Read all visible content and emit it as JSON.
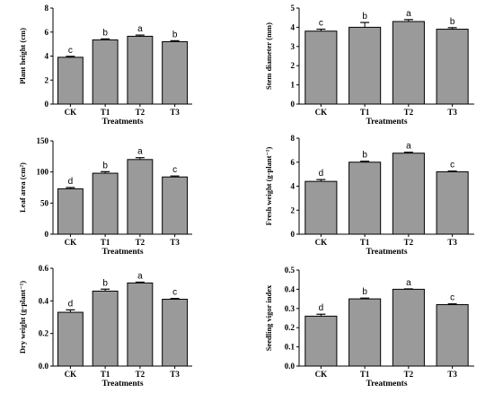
{
  "chart_data": [
    {
      "type": "bar",
      "ylabel": "Plant height (cm)",
      "xlabel": "Treatments",
      "categories": [
        "CK",
        "T1",
        "T2",
        "T3"
      ],
      "values": [
        3.9,
        5.35,
        5.65,
        5.2
      ],
      "errors": [
        0.08,
        0.08,
        0.1,
        0.08
      ],
      "significance": [
        "c",
        "b",
        "a",
        "b"
      ],
      "ylim": [
        0,
        8
      ],
      "yticks": [
        "0",
        "2",
        "4",
        "6",
        "8"
      ],
      "grid": false
    },
    {
      "type": "bar",
      "ylabel": "Stem diameter (mm)",
      "xlabel": "Treatments",
      "categories": [
        "CK",
        "T1",
        "T2",
        "T3"
      ],
      "values": [
        3.8,
        4.0,
        4.3,
        3.9
      ],
      "errors": [
        0.1,
        0.25,
        0.1,
        0.08
      ],
      "significance": [
        "c",
        "b",
        "a",
        "b"
      ],
      "ylim": [
        0,
        5
      ],
      "yticks": [
        "0",
        "1",
        "2",
        "3",
        "4",
        "5"
      ],
      "grid": false
    },
    {
      "type": "bar",
      "ylabel": "Leaf area (cm²)",
      "xlabel": "Treatments",
      "categories": [
        "CK",
        "T1",
        "T2",
        "T3"
      ],
      "values": [
        73,
        98,
        120,
        92
      ],
      "errors": [
        2,
        2.5,
        3,
        1.5
      ],
      "significance": [
        "d",
        "b",
        "a",
        "c"
      ],
      "ylim": [
        0,
        150
      ],
      "yticks": [
        "0",
        "50",
        "100",
        "150"
      ],
      "grid": false
    },
    {
      "type": "bar",
      "ylabel": "Fresh weight (g·plant⁻¹)",
      "xlabel": "Treatments",
      "categories": [
        "CK",
        "T1",
        "T2",
        "T3"
      ],
      "values": [
        4.4,
        6.0,
        6.75,
        5.2
      ],
      "errors": [
        0.15,
        0.08,
        0.08,
        0.06
      ],
      "significance": [
        "d",
        "b",
        "a",
        "c"
      ],
      "ylim": [
        0,
        8
      ],
      "yticks": [
        "0",
        "2",
        "4",
        "6",
        "8"
      ],
      "grid": false
    },
    {
      "type": "bar",
      "ylabel": "Dry weight (g·plant⁻¹)",
      "xlabel": "Treatments",
      "categories": [
        "CK",
        "T1",
        "T2",
        "T3"
      ],
      "values": [
        0.33,
        0.46,
        0.51,
        0.41
      ],
      "errors": [
        0.015,
        0.012,
        0.005,
        0.005
      ],
      "significance": [
        "d",
        "b",
        "a",
        "c"
      ],
      "ylim": [
        0,
        0.6
      ],
      "yticks": [
        "0.0",
        "0.2",
        "0.4",
        "0.6"
      ],
      "grid": false
    },
    {
      "type": "bar",
      "ylabel": "Seedling vigor index",
      "xlabel": "Treatments",
      "categories": [
        "CK",
        "T1",
        "T2",
        "T3"
      ],
      "values": [
        0.26,
        0.35,
        0.4,
        0.32
      ],
      "errors": [
        0.01,
        0.004,
        0.002,
        0.004
      ],
      "significance": [
        "d",
        "b",
        "a",
        "c"
      ],
      "ylim": [
        0,
        0.5
      ],
      "yticks": [
        "0.0",
        "0.1",
        "0.2",
        "0.3",
        "0.4",
        "0.5"
      ],
      "grid": false
    }
  ],
  "colors": {
    "bar_fill": "#9a9a9a",
    "bar_stroke": "#000000",
    "axis": "#000000"
  }
}
